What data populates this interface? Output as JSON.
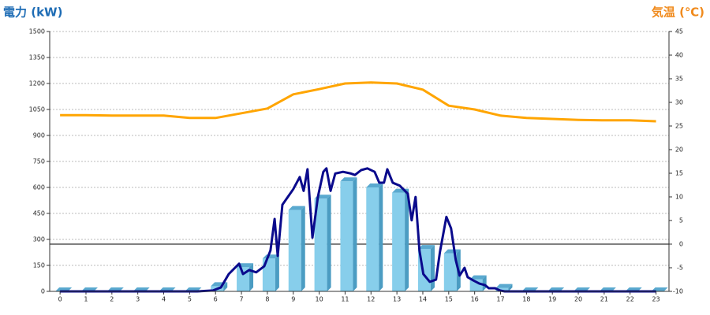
{
  "chart_data": {
    "type": "bar",
    "title_left": "電力 (kW)",
    "title_right": "気温 (℃)",
    "title_left_color": "#1f6db5",
    "title_right_color": "#f08a1c",
    "categories": [
      "0",
      "1",
      "2",
      "3",
      "4",
      "5",
      "6",
      "7",
      "8",
      "9",
      "10",
      "11",
      "12",
      "13",
      "14",
      "15",
      "16",
      "17",
      "18",
      "19",
      "20",
      "21",
      "22",
      "23"
    ],
    "xlim": [
      -0.4,
      23.5
    ],
    "ylim": [
      0,
      1500
    ],
    "yticks": [
      0,
      150,
      300,
      450,
      600,
      750,
      900,
      1050,
      1200,
      1350,
      1500
    ],
    "y2lim": [
      -10,
      45
    ],
    "y2ticks": [
      -10,
      -5,
      0,
      5,
      10,
      15,
      20,
      25,
      30,
      35,
      40,
      45
    ],
    "grid": true,
    "series": [
      {
        "type": "bar",
        "color": "#87ceeb",
        "values": [
          0,
          0,
          0,
          0,
          0,
          0,
          30,
          140,
          190,
          470,
          535,
          635,
          600,
          570,
          245,
          220,
          70,
          20,
          0,
          0,
          0,
          0,
          0,
          0
        ]
      },
      {
        "type": "line",
        "color": "#0a0a8c",
        "x": [
          0,
          5.29,
          5.9,
          6.21,
          6.51,
          6.91,
          7.06,
          7.3,
          7.57,
          7.88,
          8.12,
          8.28,
          8.4,
          8.58,
          8.79,
          9.0,
          9.25,
          9.4,
          9.55,
          9.74,
          9.95,
          10.16,
          10.28,
          10.44,
          10.62,
          10.92,
          11.23,
          11.38,
          11.62,
          11.86,
          12.14,
          12.32,
          12.5,
          12.63,
          12.84,
          13.11,
          13.42,
          13.57,
          13.72,
          13.87,
          14.02,
          14.27,
          14.51,
          14.66,
          14.91,
          15.09,
          15.27,
          15.42,
          15.61,
          15.73,
          15.94,
          16.18,
          16.4,
          16.55,
          16.79,
          16.98,
          17.16,
          23
        ],
        "values": [
          0,
          0,
          5,
          23,
          100,
          160,
          100,
          123,
          110,
          145,
          236,
          418,
          205,
          500,
          545,
          590,
          660,
          580,
          705,
          310,
          545,
          690,
          710,
          580,
          680,
          690,
          680,
          672,
          700,
          710,
          690,
          627,
          627,
          705,
          627,
          610,
          564,
          410,
          545,
          236,
          100,
          55,
          68,
          227,
          430,
          364,
          182,
          91,
          136,
          82,
          64,
          45,
          36,
          18,
          18,
          5,
          0,
          0
        ]
      },
      {
        "type": "line",
        "axis": "y2",
        "color": "#ffa500",
        "values": [
          27.3,
          27.3,
          27.2,
          27.2,
          27.2,
          26.7,
          26.7,
          27.7,
          28.7,
          31.7,
          32.8,
          34,
          34.2,
          34,
          32.7,
          29.3,
          28.5,
          27.2,
          26.7,
          26.5,
          26.3,
          26.2,
          26.2,
          26
        ]
      }
    ]
  }
}
